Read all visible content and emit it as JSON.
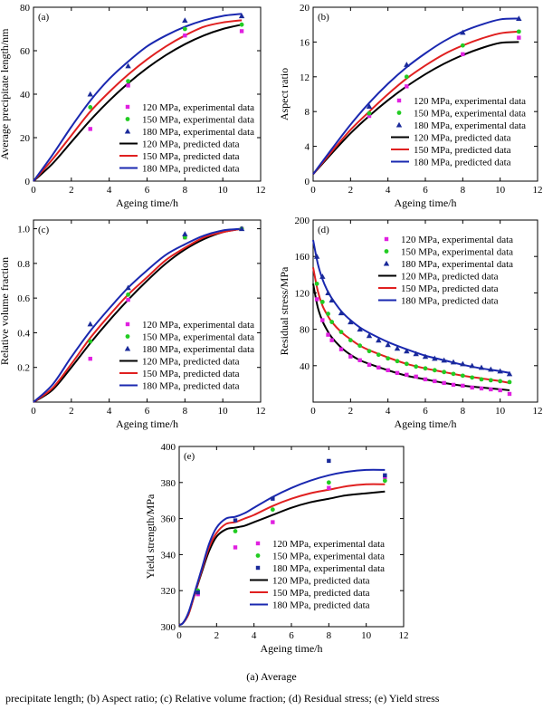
{
  "caption": {
    "line1": "(a)  Average",
    "line2": "precipitate length; (b) Aspect ratio; (c) Relative volume fraction; (d) Residual stress; (e) Yield stress"
  },
  "colors": {
    "120": "#e020e0",
    "150": "#22cc22",
    "180": "#1a2a9a",
    "line120": "#000000",
    "line150": "#e02020",
    "line180": "#1a28b0"
  },
  "chart_data": [
    {
      "id": "a",
      "type": "line",
      "tag": "(a)",
      "xlabel": "Ageing time/h",
      "ylabel": "Average precipitate length/nm",
      "xlim": [
        0,
        12
      ],
      "ylim": [
        0,
        80
      ],
      "xticks": [
        0,
        2,
        4,
        6,
        8,
        10,
        12
      ],
      "yticks": [
        0,
        20,
        40,
        60,
        80
      ],
      "legend_position": "center-right",
      "series": [
        {
          "name": "120 MPa, experimental data",
          "kind": "exp",
          "key": "120",
          "marker": "square",
          "x": [
            3,
            5,
            8,
            11
          ],
          "y": [
            24,
            44,
            67,
            69
          ]
        },
        {
          "name": "150 MPa, experimental data",
          "kind": "exp",
          "key": "150",
          "marker": "circle",
          "x": [
            3,
            5,
            8,
            11
          ],
          "y": [
            34,
            46,
            70,
            72
          ]
        },
        {
          "name": "180 MPa, experimental data",
          "kind": "exp",
          "key": "180",
          "marker": "triangle",
          "x": [
            3,
            5,
            8,
            11
          ],
          "y": [
            40,
            53,
            74,
            76
          ]
        },
        {
          "name": "120 MPa, predicted data",
          "kind": "pred",
          "key": "line120",
          "x": [
            0,
            1,
            2,
            3,
            4,
            5,
            6,
            7,
            8,
            9,
            10,
            11
          ],
          "y": [
            0,
            8,
            18,
            28,
            37,
            45,
            52,
            58,
            63,
            67,
            70,
            72
          ]
        },
        {
          "name": "150 MPa, predicted data",
          "kind": "pred",
          "key": "line150",
          "x": [
            0,
            1,
            2,
            3,
            4,
            5,
            6,
            7,
            8,
            9,
            10,
            11
          ],
          "y": [
            0,
            10,
            21,
            32,
            41,
            49,
            56,
            62,
            67,
            71,
            73,
            74
          ]
        },
        {
          "name": "180 MPa, predicted data",
          "kind": "pred",
          "key": "line180",
          "x": [
            0,
            1,
            2,
            3,
            4,
            5,
            6,
            7,
            8,
            9,
            10,
            11
          ],
          "y": [
            0,
            12,
            25,
            37,
            47,
            55,
            62,
            67,
            71,
            74,
            76,
            77
          ]
        }
      ]
    },
    {
      "id": "b",
      "type": "line",
      "tag": "(b)",
      "xlabel": "Ageing time/h",
      "ylabel": "Aspect ratio",
      "xlim": [
        0,
        12
      ],
      "ylim": [
        0,
        20
      ],
      "xticks": [
        0,
        2,
        4,
        6,
        8,
        10,
        12
      ],
      "yticks": [
        0,
        4,
        8,
        12,
        16,
        20
      ],
      "legend_position": "lower-right",
      "series": [
        {
          "name": "120 MPa, experimental data",
          "kind": "exp",
          "key": "120",
          "marker": "square",
          "x": [
            3,
            5,
            8,
            11
          ],
          "y": [
            7.5,
            10.9,
            14.6,
            16.5
          ]
        },
        {
          "name": "150 MPa, experimental data",
          "kind": "exp",
          "key": "150",
          "marker": "circle",
          "x": [
            3,
            5,
            8,
            11
          ],
          "y": [
            7.8,
            12.0,
            15.6,
            17.2
          ]
        },
        {
          "name": "180 MPa, experimental data",
          "kind": "exp",
          "key": "180",
          "marker": "triangle",
          "x": [
            3,
            5,
            8,
            11
          ],
          "y": [
            8.6,
            13.4,
            17.1,
            18.7
          ]
        },
        {
          "name": "120 MPa, predicted data",
          "kind": "pred",
          "key": "line120",
          "x": [
            0,
            1,
            2,
            3,
            4,
            5,
            6,
            7,
            8,
            9,
            10,
            11
          ],
          "y": [
            0.8,
            3.2,
            5.5,
            7.5,
            9.3,
            10.9,
            12.3,
            13.5,
            14.5,
            15.3,
            15.9,
            16.0
          ]
        },
        {
          "name": "150 MPa, predicted data",
          "kind": "pred",
          "key": "line150",
          "x": [
            0,
            1,
            2,
            3,
            4,
            5,
            6,
            7,
            8,
            9,
            10,
            11
          ],
          "y": [
            0.8,
            3.4,
            5.9,
            8.0,
            10.0,
            11.8,
            13.3,
            14.6,
            15.6,
            16.4,
            17.0,
            17.2
          ]
        },
        {
          "name": "180 MPa, predicted data",
          "kind": "pred",
          "key": "line180",
          "x": [
            0,
            1,
            2,
            3,
            4,
            5,
            6,
            7,
            8,
            9,
            10,
            11
          ],
          "y": [
            0.8,
            3.7,
            6.5,
            9.0,
            11.2,
            13.1,
            14.7,
            16.1,
            17.2,
            18.0,
            18.6,
            18.7
          ]
        }
      ]
    },
    {
      "id": "c",
      "type": "line",
      "tag": "(c)",
      "xlabel": "Ageing time/h",
      "ylabel": "Relative volume fraction",
      "xlim": [
        0,
        12
      ],
      "ylim": [
        0,
        1.05
      ],
      "xticks": [
        0,
        2,
        4,
        6,
        8,
        10,
        12
      ],
      "yticks": [
        0.2,
        0.4,
        0.6,
        0.8,
        1.0
      ],
      "ytick_labels": [
        "0.2",
        "0.4",
        "0.6",
        "0.8",
        "1.0"
      ],
      "legend_position": "lower-right",
      "series": [
        {
          "name": "120 MPa, experimental data",
          "kind": "exp",
          "key": "120",
          "marker": "square",
          "x": [
            3,
            5,
            8,
            11
          ],
          "y": [
            0.25,
            0.59,
            0.95,
            1.0
          ]
        },
        {
          "name": "150 MPa, experimental data",
          "kind": "exp",
          "key": "150",
          "marker": "circle",
          "x": [
            3,
            5,
            8,
            11
          ],
          "y": [
            0.35,
            0.62,
            0.95,
            1.0
          ]
        },
        {
          "name": "180 MPa, experimental data",
          "kind": "exp",
          "key": "180",
          "marker": "triangle",
          "x": [
            3,
            5,
            8,
            11
          ],
          "y": [
            0.45,
            0.66,
            0.97,
            1.0
          ]
        },
        {
          "name": "120 MPa, predicted data",
          "kind": "pred",
          "key": "line120",
          "x": [
            0,
            1,
            2,
            3,
            4,
            5,
            6,
            7,
            8,
            9,
            10,
            11
          ],
          "y": [
            0,
            0.07,
            0.2,
            0.34,
            0.47,
            0.59,
            0.7,
            0.8,
            0.88,
            0.94,
            0.98,
            1.0
          ]
        },
        {
          "name": "150 MPa, predicted data",
          "kind": "pred",
          "key": "line150",
          "x": [
            0,
            1,
            2,
            3,
            4,
            5,
            6,
            7,
            8,
            9,
            10,
            11
          ],
          "y": [
            0,
            0.08,
            0.22,
            0.37,
            0.5,
            0.62,
            0.72,
            0.82,
            0.89,
            0.95,
            0.98,
            1.0
          ]
        },
        {
          "name": "180 MPa, predicted data",
          "kind": "pred",
          "key": "line180",
          "x": [
            0,
            1,
            2,
            3,
            4,
            5,
            6,
            7,
            8,
            9,
            10,
            11
          ],
          "y": [
            0,
            0.1,
            0.26,
            0.41,
            0.54,
            0.66,
            0.76,
            0.85,
            0.91,
            0.96,
            0.99,
            1.0
          ]
        }
      ]
    },
    {
      "id": "d",
      "type": "line",
      "tag": "(d)",
      "xlabel": "Ageing time/h",
      "ylabel": "Residual stress/MPa",
      "xlim": [
        0,
        12
      ],
      "ylim": [
        0,
        200
      ],
      "xticks": [
        0,
        2,
        4,
        6,
        8,
        10,
        12
      ],
      "yticks": [
        40,
        80,
        120,
        160,
        200
      ],
      "legend_position": "upper-right",
      "series": [
        {
          "name": "120 MPa, experimental data",
          "kind": "exp",
          "key": "120",
          "marker": "square",
          "x": [
            0.2,
            0.5,
            0.8,
            1.0,
            1.5,
            2.0,
            2.5,
            3.0,
            3.5,
            4.0,
            4.5,
            5.0,
            5.5,
            6.0,
            6.5,
            7.0,
            7.5,
            8.0,
            8.5,
            9.0,
            9.5,
            10.0,
            10.5
          ],
          "y": [
            113,
            90,
            74,
            68,
            58,
            50,
            46,
            41,
            38,
            35,
            32,
            30,
            28,
            25,
            23,
            21,
            19,
            18,
            16,
            15,
            14,
            13,
            9
          ]
        },
        {
          "name": "150 MPa, experimental data",
          "kind": "exp",
          "key": "150",
          "marker": "circle",
          "x": [
            0.2,
            0.5,
            0.8,
            1.0,
            1.5,
            2.0,
            2.5,
            3.0,
            3.5,
            4.0,
            4.5,
            5.0,
            5.5,
            6.0,
            6.5,
            7.0,
            7.5,
            8.0,
            8.5,
            9.0,
            9.5,
            10.0,
            10.5
          ],
          "y": [
            130,
            110,
            97,
            88,
            77,
            68,
            62,
            56,
            52,
            48,
            45,
            42,
            39,
            37,
            35,
            33,
            31,
            29,
            27,
            25,
            24,
            23,
            22
          ]
        },
        {
          "name": "180 MPa, experimental data",
          "kind": "exp",
          "key": "180",
          "marker": "triangle",
          "x": [
            0.2,
            0.5,
            0.8,
            1.0,
            1.5,
            2.0,
            2.5,
            3.0,
            3.5,
            4.0,
            4.5,
            5.0,
            5.5,
            6.0,
            6.5,
            7.0,
            7.5,
            8.0,
            8.5,
            9.0,
            9.5,
            10.0,
            10.5
          ],
          "y": [
            160,
            138,
            120,
            112,
            98,
            88,
            80,
            73,
            68,
            63,
            59,
            56,
            53,
            50,
            48,
            46,
            44,
            42,
            40,
            38,
            36,
            34,
            31
          ]
        },
        {
          "name": "120 MPa, predicted data",
          "kind": "pred",
          "key": "line120",
          "x": [
            0,
            0.25,
            0.5,
            0.75,
            1,
            1.5,
            2,
            2.5,
            3,
            4,
            5,
            6,
            7,
            8,
            9,
            10,
            10.5
          ],
          "y": [
            130,
            104,
            89,
            79,
            71,
            60,
            52,
            46,
            42,
            35,
            29,
            25,
            21,
            18,
            16,
            14,
            13
          ]
        },
        {
          "name": "150 MPa, predicted data",
          "kind": "pred",
          "key": "line150",
          "x": [
            0,
            0.25,
            0.5,
            0.75,
            1,
            1.5,
            2,
            2.5,
            3,
            4,
            5,
            6,
            7,
            8,
            9,
            10,
            10.5
          ],
          "y": [
            148,
            122,
            106,
            96,
            88,
            77,
            69,
            62,
            57,
            49,
            42,
            37,
            33,
            29,
            26,
            23,
            21
          ]
        },
        {
          "name": "180 MPa, predicted data",
          "kind": "pred",
          "key": "line180",
          "x": [
            0,
            0.25,
            0.5,
            0.75,
            1,
            1.5,
            2,
            2.5,
            3,
            4,
            5,
            6,
            7,
            8,
            9,
            10,
            10.5
          ],
          "y": [
            178,
            152,
            135,
            123,
            114,
            100,
            90,
            82,
            76,
            66,
            58,
            51,
            46,
            41,
            37,
            34,
            32
          ]
        }
      ]
    },
    {
      "id": "e",
      "type": "line",
      "tag": "(e)",
      "xlabel": "Ageing time/h",
      "ylabel": "Yield strength/MPa",
      "xlim": [
        0,
        12
      ],
      "ylim": [
        300,
        400
      ],
      "xticks": [
        0,
        2,
        4,
        6,
        8,
        10,
        12
      ],
      "yticks": [
        300,
        320,
        340,
        360,
        380,
        400
      ],
      "legend_position": "lower-right",
      "series": [
        {
          "name": "120 MPa, experimental data",
          "kind": "exp",
          "key": "120",
          "marker": "square",
          "x": [
            1,
            3,
            5,
            8,
            11
          ],
          "y": [
            318,
            344,
            358,
            377,
            383
          ]
        },
        {
          "name": "150 MPa, experimental data",
          "kind": "exp",
          "key": "150",
          "marker": "circle",
          "x": [
            1,
            3,
            5,
            8,
            11
          ],
          "y": [
            320,
            353,
            365,
            380,
            381
          ]
        },
        {
          "name": "180 MPa, experimental data",
          "kind": "exp",
          "key": "180",
          "marker": "square",
          "x": [
            1,
            3,
            5,
            8,
            11
          ],
          "y": [
            319,
            359,
            371,
            392,
            384
          ]
        },
        {
          "name": "120 MPa, predicted data",
          "kind": "pred",
          "key": "line120",
          "x": [
            0,
            0.2,
            0.5,
            0.8,
            1.2,
            1.6,
            2.0,
            2.5,
            3.0,
            3.5,
            4.0,
            5.0,
            6.0,
            7.0,
            8.0,
            9.0,
            10.0,
            11.0
          ],
          "y": [
            301,
            302,
            307,
            317,
            330,
            342,
            350,
            354,
            355,
            356,
            358,
            362,
            366,
            369,
            371,
            373,
            374,
            375
          ]
        },
        {
          "name": "150 MPa, predicted data",
          "kind": "pred",
          "key": "line150",
          "x": [
            0,
            0.2,
            0.5,
            0.8,
            1.2,
            1.6,
            2.0,
            2.5,
            3.0,
            3.5,
            4.0,
            5.0,
            6.0,
            7.0,
            8.0,
            9.0,
            10.0,
            11.0
          ],
          "y": [
            301,
            302,
            307,
            317,
            331,
            344,
            352,
            357,
            358,
            360,
            362,
            367,
            371,
            374,
            376,
            378,
            379,
            379
          ]
        },
        {
          "name": "180 MPa, predicted data",
          "kind": "pred",
          "key": "line180",
          "x": [
            0,
            0.2,
            0.5,
            0.8,
            1.2,
            1.6,
            2.0,
            2.5,
            3.0,
            3.5,
            4.0,
            5.0,
            6.0,
            7.0,
            8.0,
            9.0,
            10.0,
            11.0
          ],
          "y": [
            301,
            302,
            308,
            318,
            332,
            346,
            355,
            360,
            361,
            363,
            366,
            372,
            377,
            381,
            384,
            386,
            387,
            387
          ]
        }
      ]
    }
  ]
}
